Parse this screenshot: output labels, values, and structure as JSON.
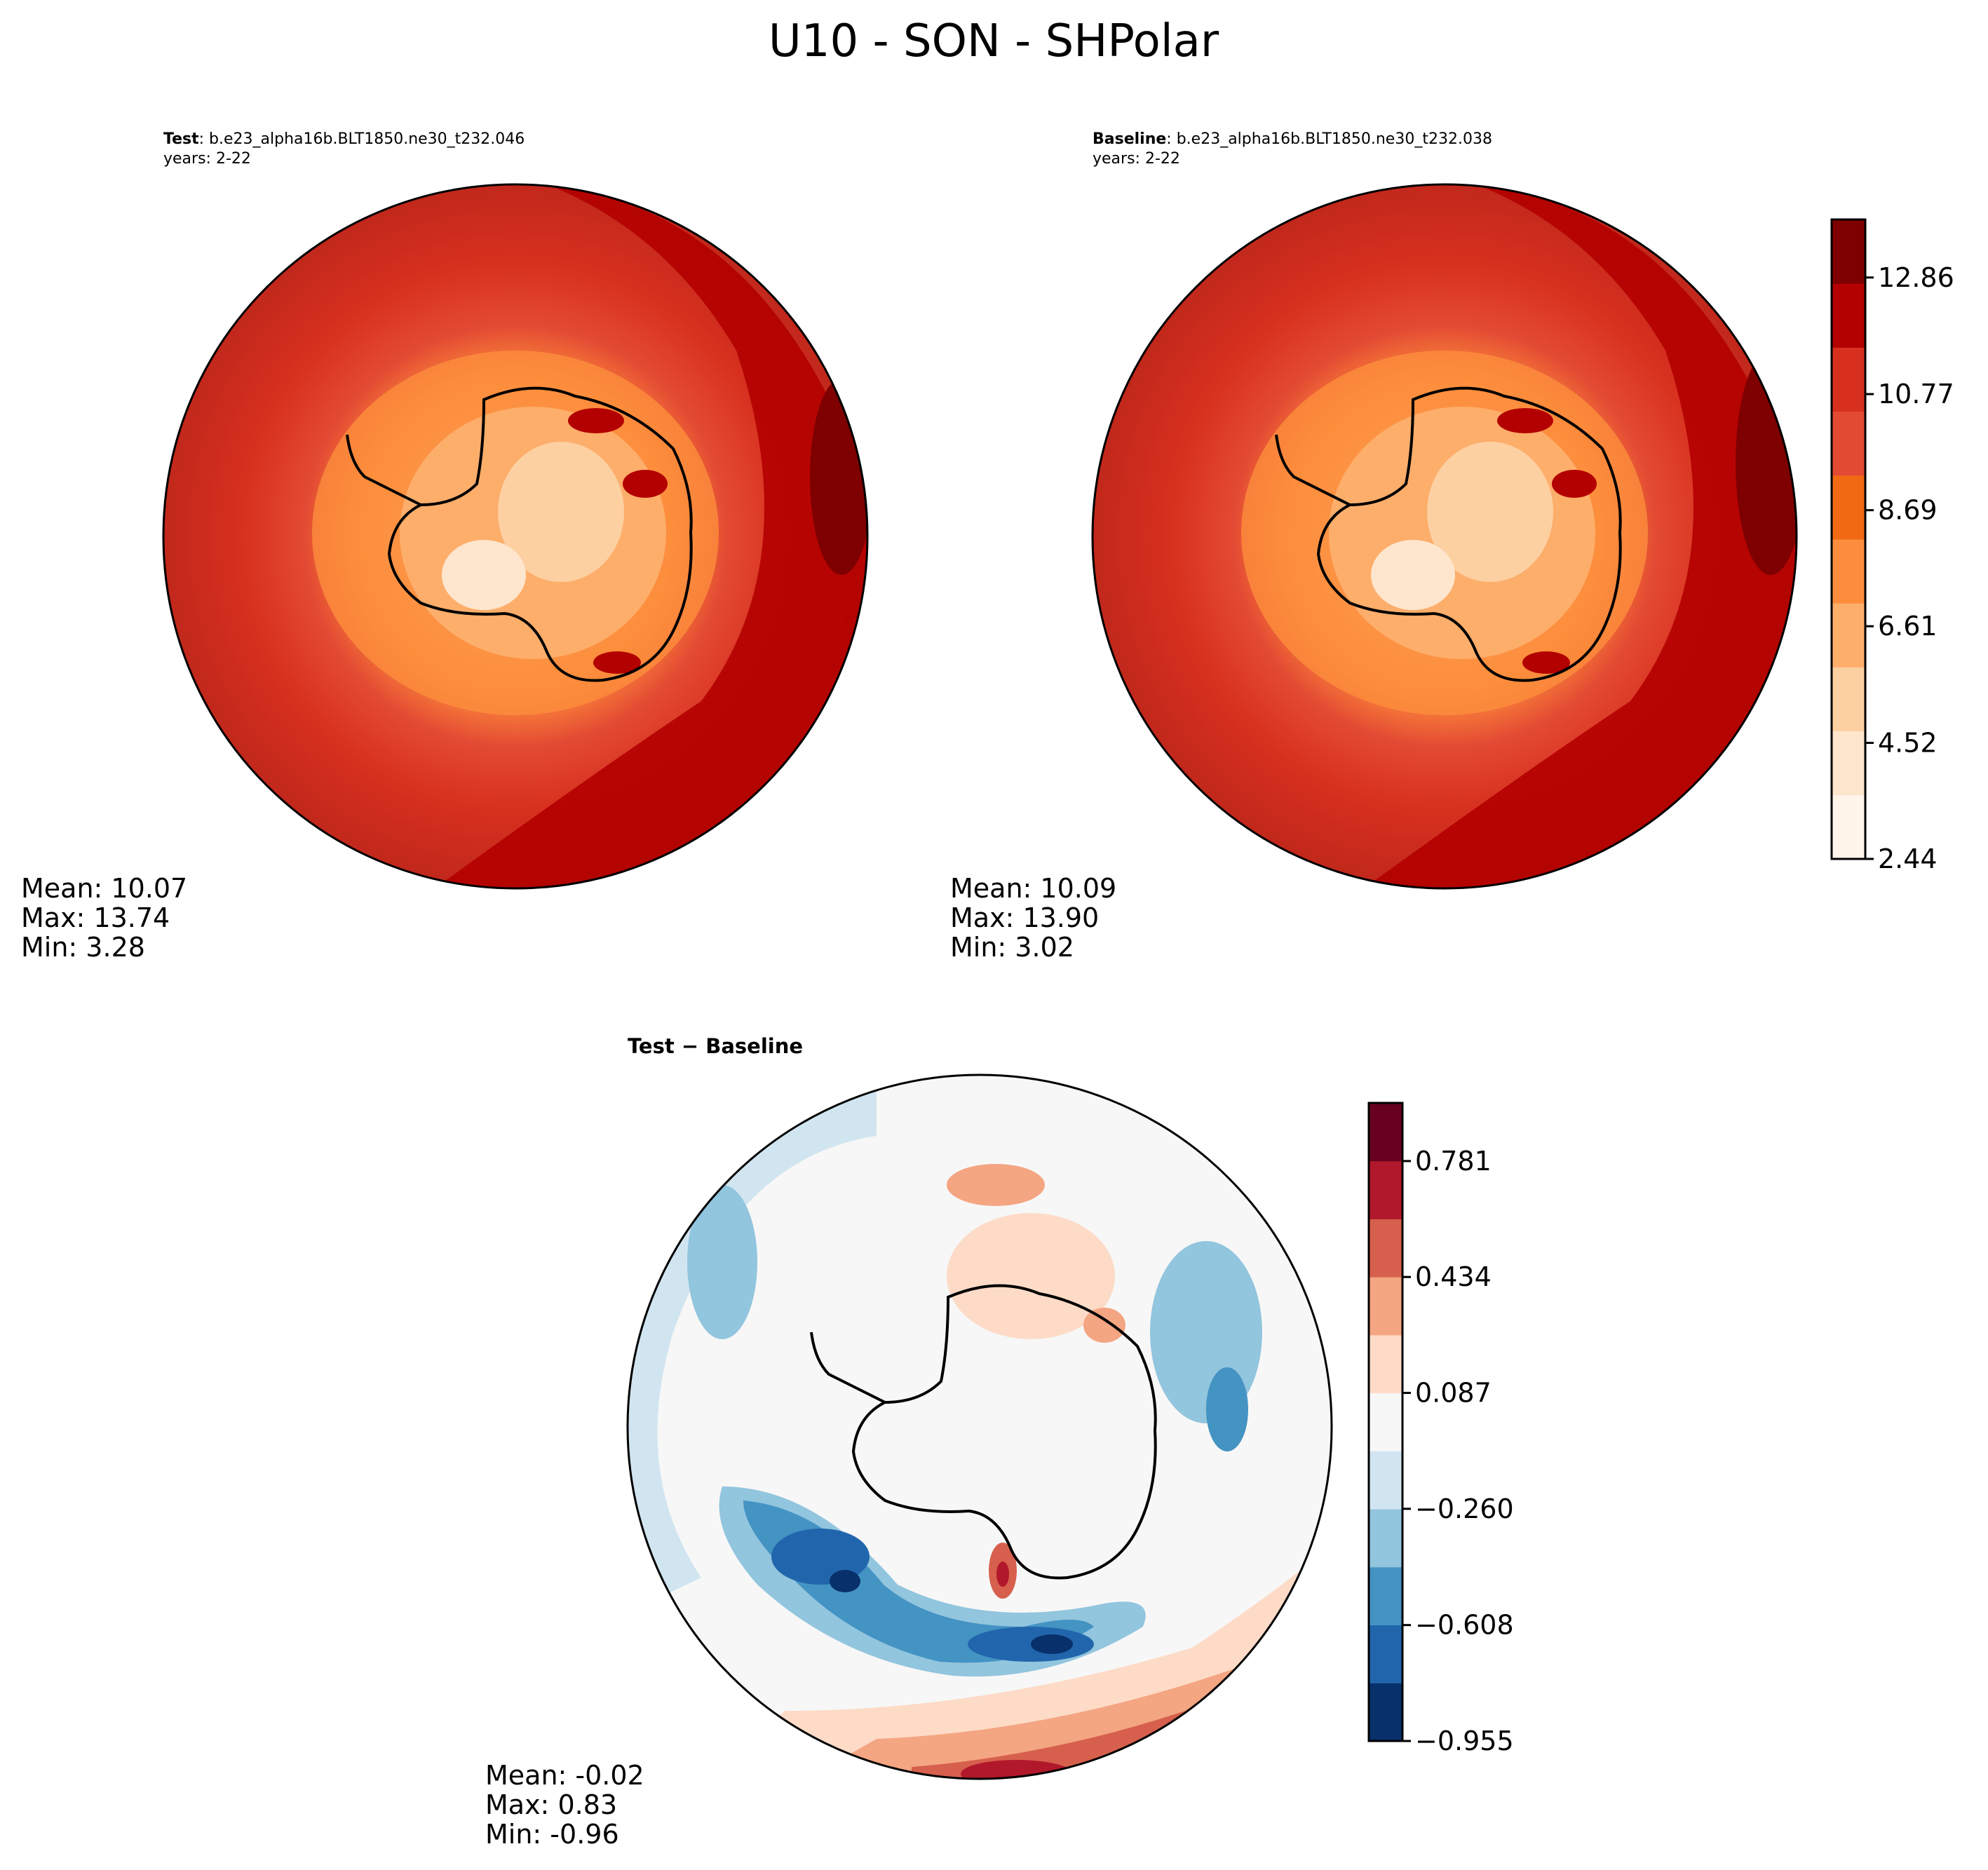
{
  "figure": {
    "title": "U10 - SON - SHPolar"
  },
  "panels": [
    {
      "id": "test",
      "title_bold": "Test",
      "title_rest": ": b.e23_alpha16b.BLT1850.ne30_t232.046",
      "subtitle": "years: 2-22",
      "stats": {
        "mean": "Mean: 10.07",
        "max": "Max: 13.74",
        "min": "Min:  3.28"
      }
    },
    {
      "id": "baseline",
      "title_bold": "Baseline",
      "title_rest": ": b.e23_alpha16b.BLT1850.ne30_t232.038",
      "subtitle": "years: 2-22",
      "stats": {
        "mean": "Mean: 10.09",
        "max": "Max: 13.90",
        "min": "Min:  3.02"
      }
    },
    {
      "id": "diff",
      "title_bold": "Test − Baseline",
      "title_rest": "",
      "subtitle": "",
      "stats": {
        "mean": "Mean: -0.02",
        "max": "Max:  0.83",
        "min": "Min: -0.96"
      }
    }
  ],
  "colorbars": {
    "absolute": {
      "colormap": "Reds",
      "colors": [
        "#fff5eb",
        "#fee6ce",
        "#fdd0a2",
        "#fdae6b",
        "#fd8d3c",
        "#f16913",
        "#e34a33",
        "#d7301f",
        "#b30000",
        "#7f0000"
      ],
      "tick_labels": [
        "2.44",
        "4.52",
        "6.61",
        "8.69",
        "10.77",
        "12.86"
      ],
      "tick_values": [
        2.44,
        4.52,
        6.61,
        8.69,
        10.77,
        12.86
      ],
      "range": [
        2.44,
        13.9
      ]
    },
    "difference": {
      "colormap": "RdBu_r",
      "colors": [
        "#08306b",
        "#2166ac",
        "#4393c3",
        "#92c5de",
        "#d1e5f0",
        "#f7f7f7",
        "#fddbc7",
        "#f4a582",
        "#d6604d",
        "#b2182b",
        "#67001f"
      ],
      "tick_labels": [
        "−0.955",
        "−0.608",
        "−0.260",
        "0.087",
        "0.434",
        "0.781"
      ],
      "tick_values": [
        -0.955,
        -0.608,
        -0.26,
        0.087,
        0.434,
        0.781
      ],
      "range": [
        -0.955,
        0.955
      ]
    }
  }
}
